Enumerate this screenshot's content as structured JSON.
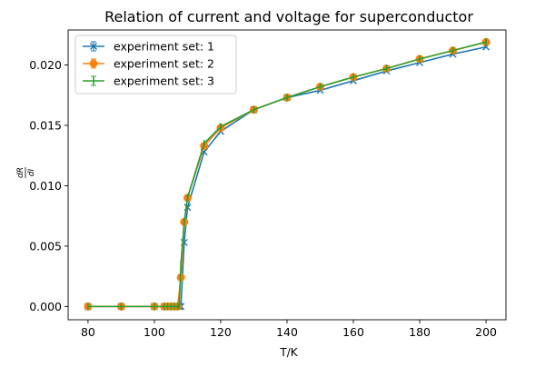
{
  "chart_data": {
    "type": "line",
    "title": "Relation of current and voltage for superconductor",
    "xlabel": "T/K",
    "ylabel": {
      "numerator": "dR",
      "denominator": "dI"
    },
    "xlim": [
      74,
      206
    ],
    "ylim": [
      -0.0011,
      0.0229
    ],
    "xticks": [
      80,
      100,
      120,
      140,
      160,
      180,
      200
    ],
    "yticks": [
      0.0,
      0.005,
      0.01,
      0.015,
      0.02
    ],
    "ytick_labels": [
      "0.000",
      "0.005",
      "0.010",
      "0.015",
      "0.020"
    ],
    "grid": false,
    "legend_position": "upper-left",
    "series": [
      {
        "name": "experiment set: 1",
        "color": "#1f77b4",
        "marker": "x",
        "x": [
          80,
          90,
          100,
          103,
          104,
          105,
          106,
          107,
          107.5,
          108,
          109,
          110,
          115,
          120,
          130,
          140,
          150,
          160,
          170,
          180,
          190,
          200
        ],
        "y": [
          0.0,
          0.0,
          0.0,
          0.0,
          0.0,
          0.0,
          0.0,
          0.0,
          0.0,
          0.0,
          0.0053,
          0.0082,
          0.0128,
          0.0145,
          0.0163,
          0.0173,
          0.0179,
          0.0187,
          0.0195,
          0.0202,
          0.0209,
          0.0215
        ]
      },
      {
        "name": "experiment set: 2",
        "color": "#ff7f0e",
        "marker": "o",
        "x": [
          80,
          90,
          100,
          103,
          104,
          105,
          106,
          107,
          108,
          109,
          110,
          115,
          120,
          130,
          140,
          150,
          160,
          170,
          180,
          190,
          200
        ],
        "y": [
          0.0,
          0.0,
          0.0,
          0.0,
          0.0,
          0.0,
          0.0,
          0.0,
          0.0024,
          0.007,
          0.009,
          0.0133,
          0.0148,
          0.0163,
          0.0173,
          0.0182,
          0.019,
          0.0197,
          0.0205,
          0.0212,
          0.0219
        ]
      },
      {
        "name": "experiment set: 3",
        "color": "#2ca02c",
        "marker": "|",
        "x": [
          80,
          90,
          100,
          103,
          104,
          105,
          106,
          107,
          107.5,
          108,
          109,
          110,
          115,
          120,
          130,
          140,
          150,
          160,
          170,
          180,
          190,
          200
        ],
        "y": [
          0.0,
          0.0,
          0.0,
          0.0,
          0.0,
          0.0,
          0.0,
          0.0,
          0.0001,
          0.0035,
          0.007,
          0.009,
          0.0135,
          0.0149,
          0.0163,
          0.0173,
          0.0182,
          0.019,
          0.0197,
          0.0205,
          0.0212,
          0.0219
        ]
      }
    ]
  }
}
